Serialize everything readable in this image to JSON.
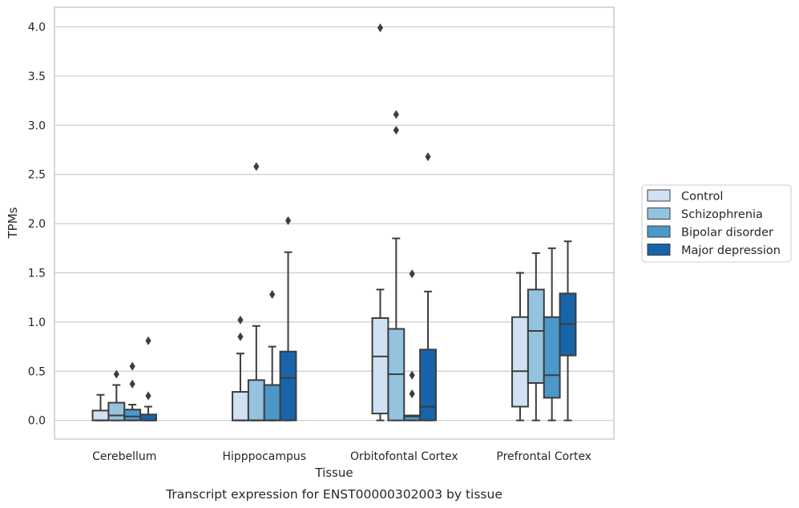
{
  "chart_data": {
    "type": "box",
    "caption": "Transcript expression for ENST00000302003 by tissue",
    "xlabel": "Tissue",
    "ylabel": "TPMs",
    "ylim": [
      -0.19,
      4.2
    ],
    "yticks": [
      "0.0",
      "0.5",
      "1.0",
      "1.5",
      "2.0",
      "2.5",
      "3.0",
      "3.5",
      "4.0"
    ],
    "grid": true,
    "legend_position": "right",
    "categories": [
      "Cerebellum",
      "Hipppocampus",
      "Orbitofontal Cortex",
      "Prefrontal Cortex"
    ],
    "series": [
      {
        "name": "Control",
        "color": "#cfe1f2",
        "boxes": [
          {
            "whisker_low": 0.0,
            "q1": 0.0,
            "median": 0.0,
            "q3": 0.1,
            "whisker_high": 0.26,
            "outliers": []
          },
          {
            "whisker_low": 0.0,
            "q1": 0.0,
            "median": 0.0,
            "q3": 0.29,
            "whisker_high": 0.68,
            "outliers": [
              0.85,
              1.02
            ]
          },
          {
            "whisker_low": 0.0,
            "q1": 0.07,
            "median": 0.65,
            "q3": 1.04,
            "whisker_high": 1.33,
            "outliers": [
              3.99
            ]
          },
          {
            "whisker_low": 0.0,
            "q1": 0.14,
            "median": 0.5,
            "q3": 1.05,
            "whisker_high": 1.5,
            "outliers": []
          }
        ]
      },
      {
        "name": "Schizophrenia",
        "color": "#93c3df",
        "boxes": [
          {
            "whisker_low": 0.0,
            "q1": 0.0,
            "median": 0.05,
            "q3": 0.18,
            "whisker_high": 0.36,
            "outliers": [
              0.47
            ]
          },
          {
            "whisker_low": 0.0,
            "q1": 0.0,
            "median": 0.0,
            "q3": 0.41,
            "whisker_high": 0.96,
            "outliers": [
              2.58
            ]
          },
          {
            "whisker_low": 0.0,
            "q1": 0.0,
            "median": 0.47,
            "q3": 0.93,
            "whisker_high": 1.85,
            "outliers": [
              2.95,
              3.11
            ]
          },
          {
            "whisker_low": 0.0,
            "q1": 0.38,
            "median": 0.91,
            "q3": 1.33,
            "whisker_high": 1.7,
            "outliers": []
          }
        ]
      },
      {
        "name": "Bipolar disorder",
        "color": "#4b98c9",
        "boxes": [
          {
            "whisker_low": 0.0,
            "q1": 0.0,
            "median": 0.04,
            "q3": 0.11,
            "whisker_high": 0.16,
            "outliers": [
              0.37,
              0.55
            ]
          },
          {
            "whisker_low": 0.0,
            "q1": 0.0,
            "median": 0.0,
            "q3": 0.36,
            "whisker_high": 0.75,
            "outliers": [
              1.28
            ]
          },
          {
            "whisker_low": 0.0,
            "q1": 0.0,
            "median": 0.04,
            "q3": 0.05,
            "whisker_high": 0.05,
            "outliers": [
              0.27,
              0.46,
              1.49
            ]
          },
          {
            "whisker_low": 0.0,
            "q1": 0.23,
            "median": 0.46,
            "q3": 1.05,
            "whisker_high": 1.75,
            "outliers": []
          }
        ]
      },
      {
        "name": "Major depression",
        "color": "#1764ab",
        "boxes": [
          {
            "whisker_low": 0.0,
            "q1": 0.0,
            "median": 0.0,
            "q3": 0.06,
            "whisker_high": 0.14,
            "outliers": [
              0.25,
              0.81
            ]
          },
          {
            "whisker_low": 0.0,
            "q1": 0.0,
            "median": 0.43,
            "q3": 0.7,
            "whisker_high": 1.71,
            "outliers": [
              2.03
            ]
          },
          {
            "whisker_low": 0.0,
            "q1": 0.0,
            "median": 0.14,
            "q3": 0.72,
            "whisker_high": 1.31,
            "outliers": [
              2.68
            ]
          },
          {
            "whisker_low": 0.0,
            "q1": 0.66,
            "median": 0.98,
            "q3": 1.29,
            "whisker_high": 1.82,
            "outliers": []
          }
        ]
      }
    ]
  }
}
